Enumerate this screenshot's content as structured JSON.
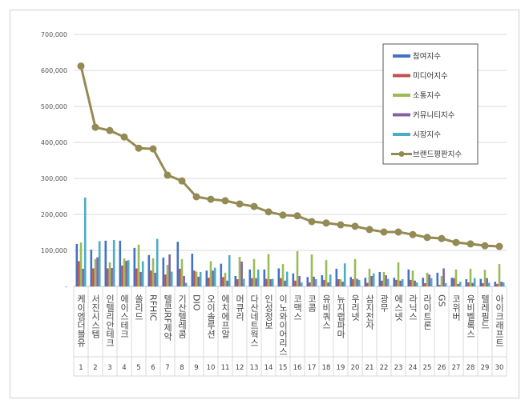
{
  "chart_data": {
    "type": "bar",
    "title": "",
    "xlabel": "",
    "ylabel": "",
    "ylim": [
      0,
      700000
    ],
    "yticks": [
      "-",
      "100,000",
      "200,000",
      "300,000",
      "400,000",
      "500,000",
      "600,000",
      "700,000"
    ],
    "grid": true,
    "legend_position": "top-right",
    "ranks": [
      "1",
      "2",
      "3",
      "4",
      "5",
      "6",
      "7",
      "8",
      "9",
      "10",
      "11",
      "12",
      "13",
      "14",
      "15",
      "16",
      "17",
      "18",
      "19",
      "20",
      "21",
      "22",
      "23",
      "24",
      "25",
      "26",
      "27",
      "28",
      "29",
      "30"
    ],
    "categories": [
      "케이엠더블유",
      "서진시스템",
      "인텔리안테크",
      "에이스테크",
      "쏠리드",
      "RFHIC",
      "텔콘RF제약",
      "기산텔레콤",
      "DIO",
      "오이솔루션",
      "에치에프알",
      "머큐리",
      "다산네트웍스",
      "인성정보",
      "이노와이어리스",
      "코맥스",
      "코콤",
      "유비쿼스",
      "뉴지랩파마",
      "우리넷",
      "삼지전자",
      "광무",
      "에스넷",
      "라닉스",
      "라이트론",
      "GS",
      "코위버",
      "유비벨록스",
      "텔레필드",
      "아이크래프트"
    ],
    "series": [
      {
        "name": "참여지수",
        "type": "bar",
        "color": "#4472C4",
        "values": [
          118000,
          102000,
          127000,
          127000,
          107000,
          87000,
          80000,
          124000,
          91000,
          44000,
          63000,
          29000,
          47000,
          47000,
          50000,
          36000,
          26000,
          31000,
          49000,
          26000,
          24000,
          40000,
          24000,
          47000,
          24000,
          38000,
          24000,
          20000,
          21000,
          13000
        ]
      },
      {
        "name": "미디어지수",
        "type": "bar",
        "color": "#C0504D",
        "values": [
          70000,
          50000,
          50000,
          58000,
          50000,
          44000,
          33000,
          49000,
          44000,
          24000,
          26000,
          20000,
          23000,
          21000,
          23000,
          16000,
          11000,
          18000,
          20000,
          20000,
          10000,
          16000,
          18000,
          18000,
          9000,
          4000,
          23000,
          11000,
          9000,
          7000
        ]
      },
      {
        "name": "소통지수",
        "type": "bar",
        "color": "#9BBB59",
        "values": [
          122000,
          76000,
          67000,
          78000,
          116000,
          78000,
          60000,
          76000,
          41000,
          70000,
          38000,
          82000,
          76000,
          90000,
          62000,
          98000,
          89000,
          73000,
          20000,
          76000,
          49000,
          40000,
          67000,
          44000,
          38000,
          29000,
          47000,
          49000,
          46000,
          62000
        ]
      },
      {
        "name": "커뮤니티지수",
        "type": "bar",
        "color": "#8064A2",
        "values": [
          49000,
          81000,
          51000,
          71000,
          40000,
          38000,
          89000,
          29000,
          27000,
          44000,
          16000,
          69000,
          23000,
          20000,
          16000,
          29000,
          27000,
          11000,
          13000,
          21000,
          29000,
          31000,
          16000,
          16000,
          33000,
          50000,
          7000,
          10000,
          23000,
          13000
        ]
      },
      {
        "name": "시장지수",
        "type": "bar",
        "color": "#4BACC6",
        "values": [
          247000,
          126000,
          129000,
          73000,
          70000,
          132000,
          41000,
          10000,
          40000,
          52000,
          87000,
          21000,
          47000,
          21000,
          41000,
          11000,
          20000,
          33000,
          64000,
          18000,
          36000,
          21000,
          20000,
          11000,
          23000,
          9000,
          13000,
          23000,
          10000,
          11000
        ]
      },
      {
        "name": "브랜드평판지수",
        "type": "line",
        "color": "#948A54",
        "values": [
          612000,
          442000,
          433000,
          415000,
          384000,
          382000,
          309000,
          293000,
          249000,
          242000,
          238000,
          229000,
          222000,
          207000,
          198000,
          196000,
          180000,
          176000,
          171000,
          167000,
          158000,
          151000,
          151000,
          144000,
          136000,
          133000,
          122000,
          118000,
          113000,
          111000
        ]
      }
    ]
  }
}
